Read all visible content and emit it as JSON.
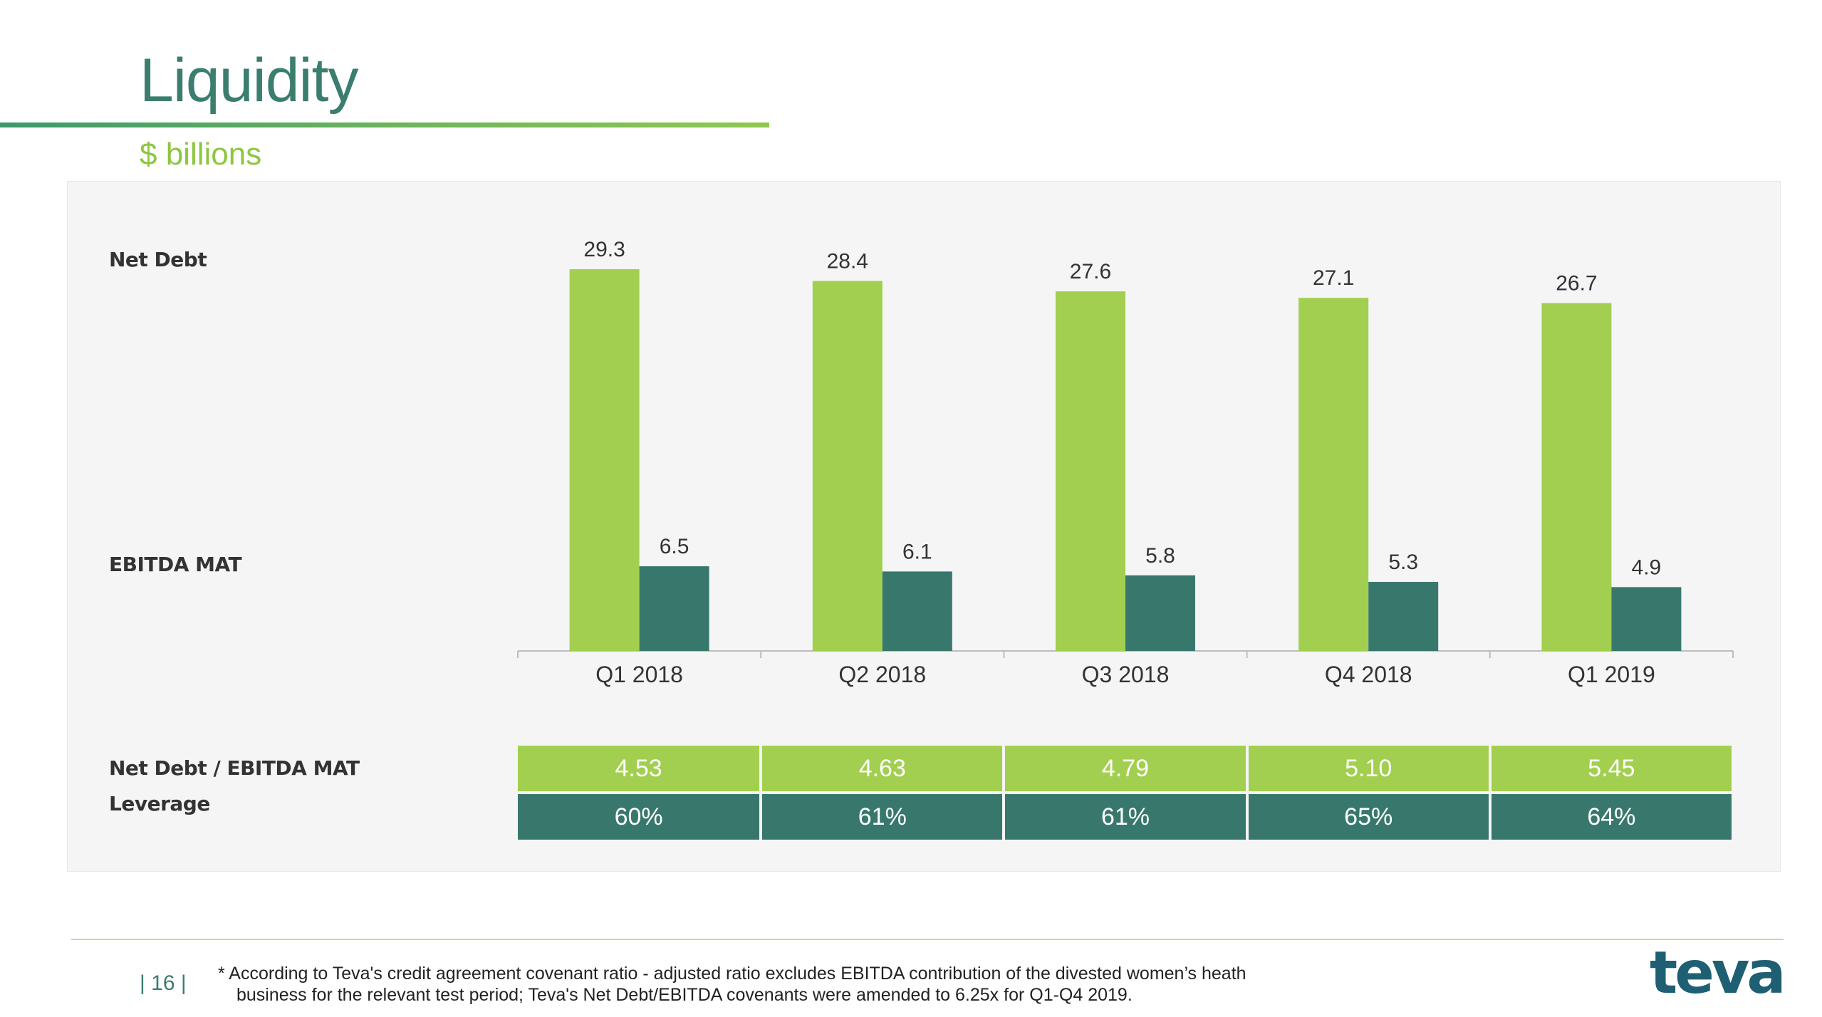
{
  "header": {
    "title": "Liquidity",
    "subtitle": "$ billions"
  },
  "row_labels": {
    "net_debt": "Net Debt",
    "ebitda": "EBITDA MAT",
    "ratio": "Net Debt / EBITDA MAT",
    "leverage": "Leverage"
  },
  "chart_data": {
    "type": "bar",
    "categories": [
      "Q1 2018",
      "Q2 2018",
      "Q3 2018",
      "Q4 2018",
      "Q1 2019"
    ],
    "series": [
      {
        "name": "Net Debt",
        "values": [
          29.3,
          28.4,
          27.6,
          27.1,
          26.7
        ],
        "labels": [
          "29.3",
          "28.4",
          "27.6",
          "27.1",
          "26.7"
        ],
        "color": "#a2cf4f"
      },
      {
        "name": "EBITDA MAT",
        "values": [
          6.5,
          6.1,
          5.8,
          5.3,
          4.9
        ],
        "labels": [
          "6.5",
          "6.1",
          "5.8",
          "5.3",
          "4.9"
        ],
        "color": "#38786c"
      }
    ],
    "table": {
      "rows": [
        {
          "name": "Net Debt / EBITDA MAT",
          "values": [
            "4.53",
            "4.63",
            "4.79",
            "5.10",
            "5.45"
          ],
          "color": "#a2cf4f"
        },
        {
          "name": "Leverage",
          "values": [
            "60%",
            "61%",
            "61%",
            "65%",
            "64%"
          ],
          "color": "#38786c"
        }
      ]
    }
  },
  "footer": {
    "page": "| 16 |",
    "note_line1": "* According to Teva's credit agreement covenant ratio - adjusted ratio excludes EBITDA contribution of the divested women’s heath",
    "note_line2": "business for the relevant test period; Teva's Net Debt/EBITDA covenants were amended to 6.25x for Q1-Q4 2019.",
    "logo_text": "teva",
    "logo_color": "#1e5f74"
  }
}
